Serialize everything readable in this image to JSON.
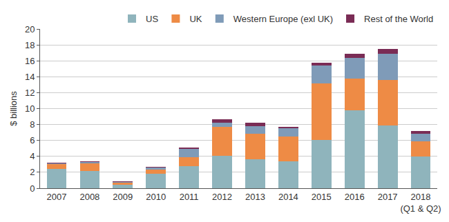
{
  "chart_data": {
    "type": "bar",
    "stacked": true,
    "grid": true,
    "legend": "top right",
    "y_label": "$ billions",
    "categories": [
      "2007",
      "2008",
      "2009",
      "2010",
      "2011",
      "2012",
      "2013",
      "2014",
      "2015",
      "2016",
      "2017",
      "2018\n(Q1 & Q2)"
    ],
    "ylim": [
      0,
      20
    ],
    "yticks": [
      0,
      2,
      4,
      6,
      8,
      10,
      12,
      14,
      16,
      18,
      20
    ],
    "series": [
      {
        "name": "US",
        "color": "#8fb4bc",
        "values": [
          2.4,
          2.2,
          0.4,
          1.8,
          2.8,
          4.1,
          3.6,
          3.4,
          6.1,
          9.8,
          7.9,
          4.0
        ]
      },
      {
        "name": "UK",
        "color": "#ee8b45",
        "values": [
          0.6,
          0.9,
          0.3,
          0.5,
          1.1,
          3.6,
          3.2,
          3.1,
          7.1,
          4.0,
          5.7,
          1.9
        ]
      },
      {
        "name": "Western Europe (exl UK)",
        "color": "#7f9bb8",
        "values": [
          0.1,
          0.2,
          0.1,
          0.3,
          1.0,
          0.5,
          1.0,
          1.0,
          2.2,
          2.6,
          3.3,
          0.9
        ]
      },
      {
        "name": "Rest of the World",
        "color": "#7a2c55",
        "values": [
          0.1,
          0.1,
          0.1,
          0.1,
          0.2,
          0.5,
          0.4,
          0.2,
          0.4,
          0.5,
          0.6,
          0.4
        ]
      }
    ]
  }
}
